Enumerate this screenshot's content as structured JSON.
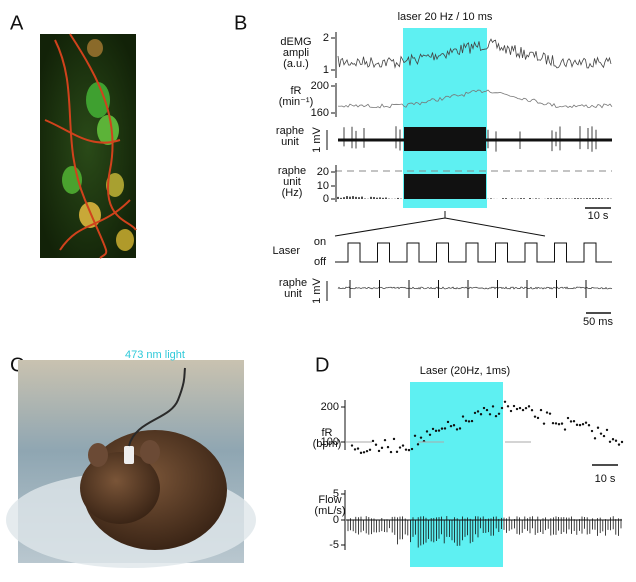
{
  "panels": {
    "A": {
      "label": "A"
    },
    "B": {
      "label": "B",
      "title": "laser 20 Hz / 10 ms",
      "demg": {
        "label_lines": [
          "dEMG",
          "ampli",
          "(a.u.)"
        ],
        "ticks": [
          "2",
          "1"
        ]
      },
      "fr": {
        "label_lines": [
          "fR",
          "(min⁻¹)"
        ],
        "ticks": [
          "200",
          "160"
        ]
      },
      "unit": {
        "label_lines": [
          "raphe",
          "unit"
        ],
        "scale": "1 mV"
      },
      "rate": {
        "label_lines": [
          "raphe",
          "unit",
          "(Hz)"
        ],
        "ticks": [
          "20",
          "10",
          "0"
        ]
      },
      "time_scale": "10 s",
      "laser": {
        "label": "Laser",
        "on": "on",
        "off": "off"
      },
      "unit_zoom": {
        "label_lines": [
          "raphe",
          "unit"
        ],
        "scale": "1 mV"
      },
      "zoom_scale": "50 ms"
    },
    "C": {
      "label": "C",
      "annotation": "473 nm light"
    },
    "D": {
      "label": "D",
      "title": "Laser (20Hz, 1ms)",
      "fr": {
        "label_lines": [
          "fR",
          "(bpm)"
        ],
        "ticks": [
          "200",
          "100"
        ]
      },
      "flow": {
        "label_lines": [
          "Flow",
          "(mL/s)"
        ],
        "ticks": [
          "5",
          "0",
          "-5"
        ]
      },
      "time_scale": "10 s"
    }
  }
}
